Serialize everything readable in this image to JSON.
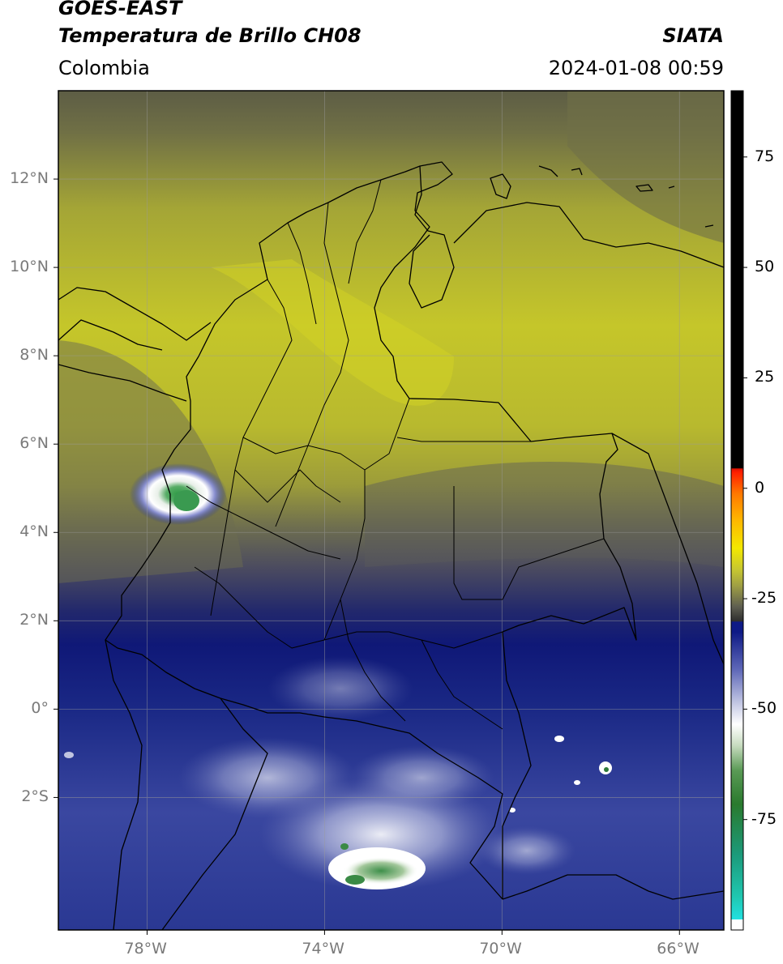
{
  "header": {
    "satellite": "GOES-EAST",
    "product": "Temperatura de Brillo CH08",
    "region": "Colombia",
    "agency": "SIATA",
    "datetime": "2024-01-08 00:59"
  },
  "map": {
    "lon_range": [
      -80,
      -65
    ],
    "lat_range": [
      -5,
      14
    ],
    "lat_ticks": [
      {
        "value": 12,
        "label": "12°N"
      },
      {
        "value": 10,
        "label": "10°N"
      },
      {
        "value": 8,
        "label": "8°N"
      },
      {
        "value": 6,
        "label": "6°N"
      },
      {
        "value": 4,
        "label": "4°N"
      },
      {
        "value": 2,
        "label": "2°N"
      },
      {
        "value": 0,
        "label": "0°"
      },
      {
        "value": -2,
        "label": "2°S"
      }
    ],
    "lon_ticks": [
      {
        "value": -78,
        "label": "78°W"
      },
      {
        "value": -74,
        "label": "74°W"
      },
      {
        "value": -70,
        "label": "70°W"
      },
      {
        "value": -66,
        "label": "66°W"
      }
    ],
    "gridlines": true
  },
  "colorbar": {
    "range": [
      -100,
      90
    ],
    "ticks": [
      {
        "value": 75,
        "label": "75"
      },
      {
        "value": 50,
        "label": "50"
      },
      {
        "value": 25,
        "label": "25"
      },
      {
        "value": 0,
        "label": "0"
      },
      {
        "value": -25,
        "label": "-25"
      },
      {
        "value": -50,
        "label": "-50"
      },
      {
        "value": -75,
        "label": "-75"
      }
    ]
  },
  "colors": {
    "olive_warm": "#bcbd2c",
    "olive_dark": "#6f6f43",
    "navy": "#0d1a7a",
    "lavender": "#8a90c4",
    "white_cloud": "#f2f2f7",
    "green_core": "#2e9a45",
    "boundaries": "#000000",
    "gridline": "#9a9a9a",
    "tick_label": "#7a7a7a"
  }
}
